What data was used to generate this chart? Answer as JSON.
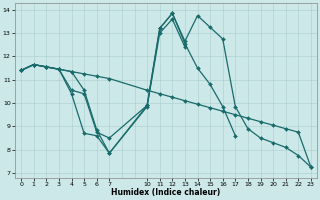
{
  "xlabel": "Humidex (Indice chaleur)",
  "xlim": [
    -0.5,
    23.5
  ],
  "ylim": [
    6.8,
    14.3
  ],
  "yticks": [
    7,
    8,
    9,
    10,
    11,
    12,
    13,
    14
  ],
  "xtick_vals": [
    0,
    1,
    2,
    3,
    4,
    5,
    6,
    7,
    10,
    11,
    12,
    13,
    14,
    15,
    16,
    17,
    18,
    19,
    20,
    21,
    22,
    23
  ],
  "bg_color": "#cce8e8",
  "line_color": "#1a6b6b",
  "grid_color": "#aacccc",
  "lines": [
    {
      "x": [
        0,
        1,
        2,
        3,
        4,
        5,
        6,
        7,
        10,
        11,
        12,
        13,
        14,
        15,
        16,
        17,
        18,
        19,
        20,
        21,
        22,
        23
      ],
      "y": [
        11.4,
        11.65,
        11.55,
        11.45,
        11.35,
        11.25,
        11.15,
        11.05,
        10.55,
        10.4,
        10.25,
        10.1,
        9.95,
        9.8,
        9.65,
        9.5,
        9.35,
        9.2,
        9.05,
        8.9,
        8.75,
        7.25
      ]
    },
    {
      "x": [
        0,
        1,
        2,
        3,
        4,
        5,
        6,
        7,
        10,
        11,
        12,
        13,
        14,
        15,
        16,
        17,
        18,
        19,
        20,
        21,
        22,
        23
      ],
      "y": [
        11.4,
        11.65,
        11.55,
        11.45,
        11.35,
        10.55,
        8.85,
        7.85,
        9.9,
        13.2,
        13.85,
        12.65,
        13.75,
        13.25,
        12.75,
        9.85,
        8.9,
        8.5,
        8.3,
        8.1,
        7.75,
        7.25
      ]
    },
    {
      "x": [
        0,
        1,
        2,
        3,
        4,
        5,
        6,
        7,
        10,
        11,
        12,
        13,
        14,
        15,
        16,
        17
      ],
      "y": [
        11.4,
        11.65,
        11.55,
        11.45,
        10.55,
        10.4,
        8.75,
        8.5,
        9.9,
        13.2,
        13.85,
        12.55,
        11.5,
        10.8,
        9.85,
        8.6
      ]
    },
    {
      "x": [
        0,
        1,
        2,
        3,
        4,
        5,
        6,
        7,
        10,
        11,
        12,
        13
      ],
      "y": [
        11.4,
        11.65,
        11.55,
        11.45,
        10.4,
        8.7,
        8.6,
        7.85,
        9.85,
        13.0,
        13.6,
        12.4
      ]
    }
  ]
}
